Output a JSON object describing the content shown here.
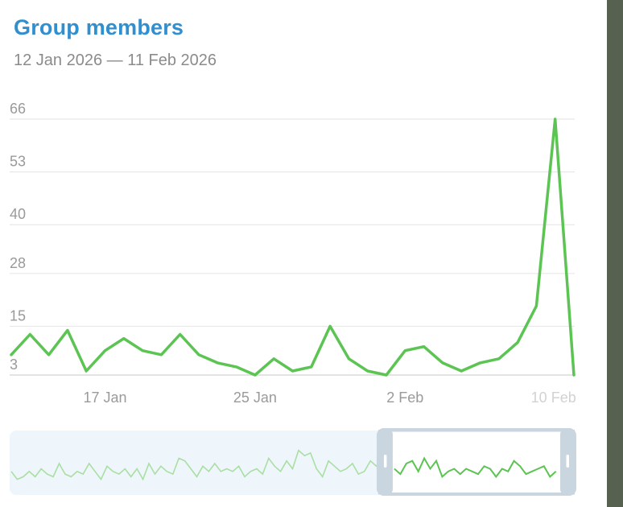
{
  "card": {
    "title": "Group members",
    "date_range": "12 Jan 2026 — 11 Feb 2026"
  },
  "colors": {
    "title": "#2f8fd0",
    "line": "#5cc453",
    "grid": "#e8e8e8",
    "navigator_bg": "#eef5fb",
    "navigator_handle": "#c9d6e0"
  },
  "chart_data": {
    "type": "line",
    "x": [
      "12 Jan 2026",
      "13 Jan 2026",
      "14 Jan 2026",
      "15 Jan 2026",
      "16 Jan 2026",
      "17 Jan 2026",
      "18 Jan 2026",
      "19 Jan 2026",
      "20 Jan 2026",
      "21 Jan 2026",
      "22 Jan 2026",
      "23 Jan 2026",
      "24 Jan 2026",
      "25 Jan 2026",
      "26 Jan 2026",
      "27 Jan 2026",
      "28 Jan 2026",
      "29 Jan 2026",
      "30 Jan 2026",
      "31 Jan 2026",
      "1 Feb 2026",
      "2 Feb 2026",
      "3 Feb 2026",
      "4 Feb 2026",
      "5 Feb 2026",
      "6 Feb 2026",
      "7 Feb 2026",
      "8 Feb 2026",
      "9 Feb 2026",
      "10 Feb 2026",
      "11 Feb 2026"
    ],
    "series": [
      {
        "values": [
          8,
          13,
          8,
          14,
          4,
          9,
          12,
          9,
          8,
          13,
          8,
          6,
          5,
          3,
          7,
          4,
          5,
          15,
          7,
          4,
          3,
          9,
          10,
          6,
          4,
          6,
          7,
          11,
          20,
          66,
          3
        ]
      }
    ],
    "y_ticks": [
      "66",
      "53",
      "40",
      "28",
      "15",
      "3"
    ],
    "x_ticks": [
      "17 Jan",
      "25 Jan",
      "2 Feb",
      "10 Feb"
    ],
    "ylim": [
      3,
      66
    ],
    "grid": true,
    "navigator": {
      "values": [
        8,
        5,
        6,
        8,
        6,
        9,
        7,
        6,
        11,
        7,
        6,
        8,
        7,
        11,
        8,
        5,
        10,
        8,
        7,
        9,
        6,
        9,
        5,
        11,
        7,
        10,
        8,
        7,
        13,
        12,
        9,
        6,
        10,
        8,
        11,
        8,
        9,
        8,
        10,
        6,
        8,
        9,
        7,
        13,
        10,
        8,
        12,
        9,
        16,
        14,
        15,
        9,
        6,
        12,
        10,
        8,
        9,
        11,
        7,
        8,
        12,
        10,
        14,
        8,
        9,
        7,
        11,
        12,
        8,
        13,
        9,
        12,
        6,
        8,
        9,
        7,
        9,
        8,
        7,
        10,
        9,
        6,
        9,
        8,
        12,
        10,
        7,
        8,
        9,
        10,
        6,
        8,
        7,
        9,
        22
      ],
      "window": [
        0.65,
        1.0
      ]
    }
  }
}
